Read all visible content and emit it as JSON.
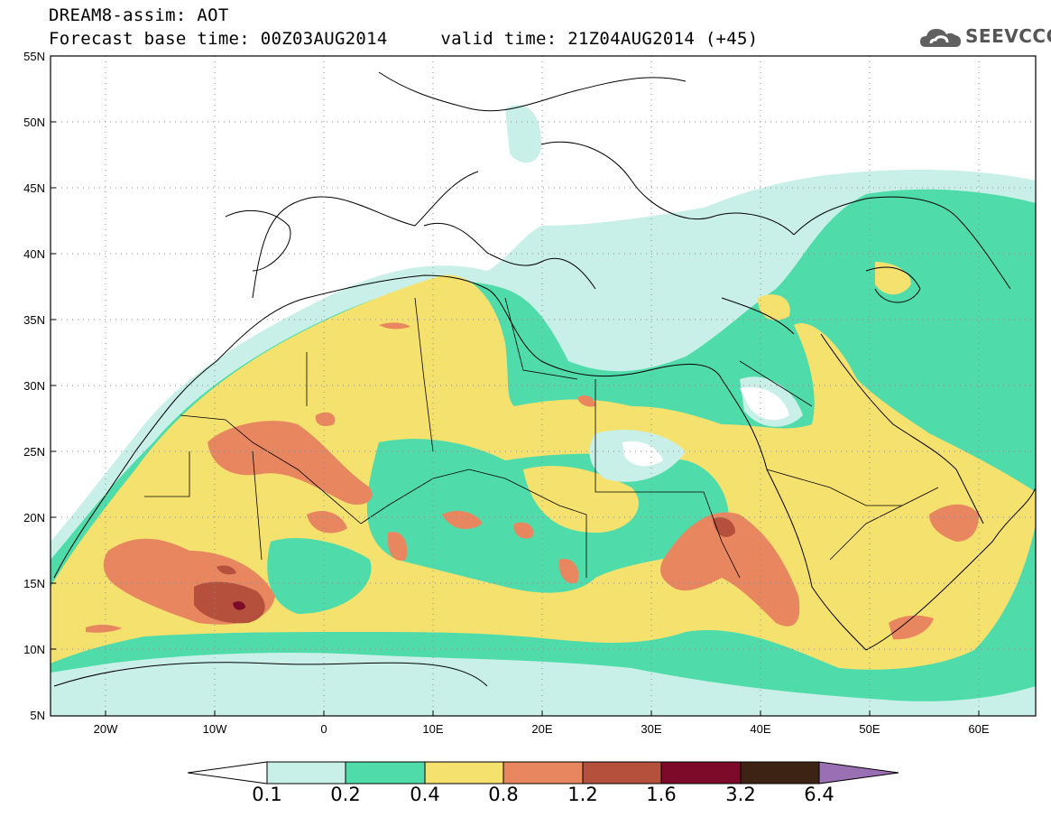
{
  "header": {
    "title_line1": "DREAM8-assim: AOT",
    "title_line2": "Forecast base time: 00Z03AUG2014     valid time: 21Z04AUG2014 (+45)",
    "logo_text": "SEEVCCC"
  },
  "map": {
    "lon_ticks": [
      "20W",
      "10W",
      "0",
      "10E",
      "20E",
      "30E",
      "40E",
      "50E",
      "60E"
    ],
    "lat_ticks": [
      "55N",
      "50N",
      "45N",
      "40N",
      "35N",
      "30N",
      "25N",
      "20N",
      "15N",
      "10N",
      "5N"
    ],
    "lon_range": [
      -25,
      65
    ],
    "lat_range": [
      5,
      55
    ]
  },
  "colorbar": {
    "labels": [
      "0.1",
      "0.2",
      "0.4",
      "0.8",
      "1.2",
      "1.6",
      "3.2",
      "6.4"
    ],
    "colors": [
      "#ffffff",
      "#c8f0e8",
      "#50dcaa",
      "#f5e16e",
      "#e8875f",
      "#b4503c",
      "#7d0a28",
      "#3c2314",
      "#9b6fb4"
    ]
  }
}
